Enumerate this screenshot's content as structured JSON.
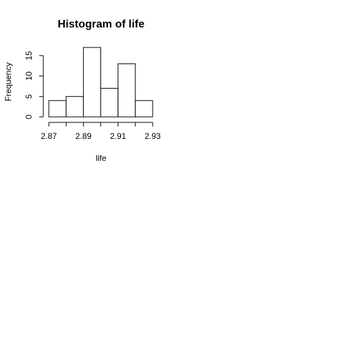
{
  "chart_data": {
    "type": "bar",
    "title": "Histogram of life",
    "xlabel": "life",
    "ylabel": "Frequency",
    "bins": [
      {
        "start": 2.87,
        "end": 2.88,
        "count": 4
      },
      {
        "start": 2.88,
        "end": 2.89,
        "count": 5
      },
      {
        "start": 2.89,
        "end": 2.9,
        "count": 17
      },
      {
        "start": 2.9,
        "end": 2.91,
        "count": 7
      },
      {
        "start": 2.91,
        "end": 2.92,
        "count": 13
      },
      {
        "start": 2.92,
        "end": 2.93,
        "count": 4
      }
    ],
    "xlim": [
      2.87,
      2.93
    ],
    "ylim": [
      0,
      17
    ],
    "x_ticks": [
      2.87,
      2.88,
      2.89,
      2.9,
      2.91,
      2.92,
      2.93
    ],
    "x_tick_labels": [
      "2.87",
      "",
      "2.89",
      "",
      "2.91",
      "",
      "2.93"
    ],
    "y_ticks": [
      0,
      5,
      10,
      15
    ],
    "y_tick_labels": [
      "0",
      "5",
      "10",
      "15"
    ],
    "grid": false,
    "legend": "none"
  }
}
